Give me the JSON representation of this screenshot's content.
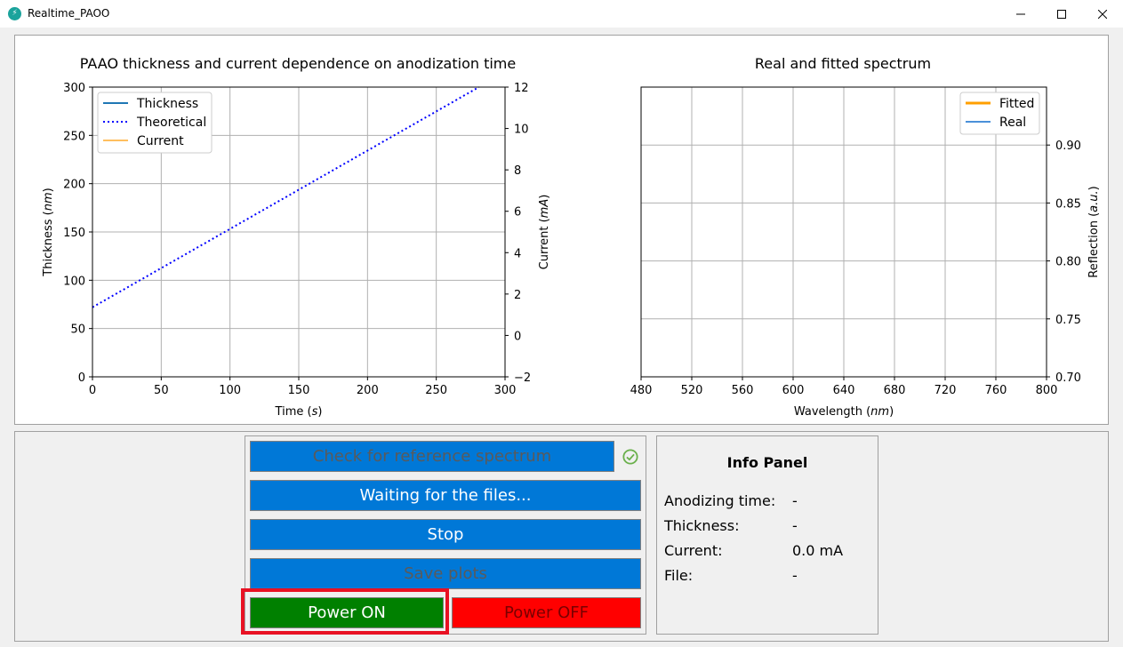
{
  "window": {
    "title": "Realtime_PAOO"
  },
  "thickness_chart": {
    "title": "PAAO thickness and current dependence on anodization time",
    "xlabel": "Time (s)",
    "ylabel_left": "Thickness (nm)",
    "ylabel_right": "Current (mA)",
    "x_ticks": [
      "0",
      "50",
      "100",
      "150",
      "200",
      "250",
      "300"
    ],
    "y_left_ticks": [
      "0",
      "50",
      "100",
      "150",
      "200",
      "250",
      "300"
    ],
    "y_right_ticks": [
      "−2",
      "0",
      "2",
      "4",
      "6",
      "8",
      "10",
      "12"
    ],
    "legend": [
      "Thickness",
      "Theoretical",
      "Current"
    ]
  },
  "spectrum_chart": {
    "title": "Real and fitted spectrum",
    "xlabel": "Wavelength (nm)",
    "ylabel": "Reflection (a.u.)",
    "x_ticks": [
      "480",
      "520",
      "560",
      "600",
      "640",
      "680",
      "720",
      "760",
      "800"
    ],
    "y_ticks": [
      "0.70",
      "0.75",
      "0.80",
      "0.85",
      "0.90"
    ],
    "legend": [
      "Fitted",
      "Real"
    ]
  },
  "chart_data": [
    {
      "type": "line",
      "title": "PAAO thickness and current dependence on anodization time",
      "xlabel": "Time (s)",
      "ylabel": "Thickness (nm)",
      "y2label": "Current (mA)",
      "xlim": [
        0,
        300
      ],
      "ylim": [
        0,
        300
      ],
      "y2lim": [
        -2,
        12
      ],
      "grid": true,
      "legend_position": "top-left",
      "series": [
        {
          "name": "Thickness",
          "x": [],
          "y": [],
          "color": "#1f77b4",
          "style": "solid"
        },
        {
          "name": "Theoretical",
          "x": [
            0,
            281
          ],
          "y": [
            72,
            300
          ],
          "color": "#0000ff",
          "style": "dotted"
        },
        {
          "name": "Current",
          "x": [],
          "y": [],
          "color": "#ffbf5f",
          "style": "solid",
          "axis": "right"
        }
      ]
    },
    {
      "type": "line",
      "title": "Real and fitted spectrum",
      "xlabel": "Wavelength (nm)",
      "ylabel": "Reflection (a.u.)",
      "xlim": [
        480,
        800
      ],
      "ylim": [
        0.7,
        0.95
      ],
      "grid": true,
      "legend_position": "top-right",
      "series": [
        {
          "name": "Fitted",
          "x": [],
          "y": [],
          "color": "#ff9f00"
        },
        {
          "name": "Real",
          "x": [],
          "y": [],
          "color": "#4a90d9"
        }
      ]
    }
  ],
  "controls": {
    "check_reference": "Check for reference spectrum",
    "waiting_files": "Waiting for the files...",
    "stop": "Stop",
    "save_plots": "Save plots",
    "power_on": "Power ON",
    "power_off": "Power OFF"
  },
  "info_panel": {
    "title": "Info Panel",
    "rows": [
      {
        "label": "Anodizing time:",
        "value": "-"
      },
      {
        "label": "Thickness:",
        "value": "-"
      },
      {
        "label": "Current:",
        "value": "0.0 mA"
      },
      {
        "label": "File:",
        "value": "-"
      }
    ]
  }
}
